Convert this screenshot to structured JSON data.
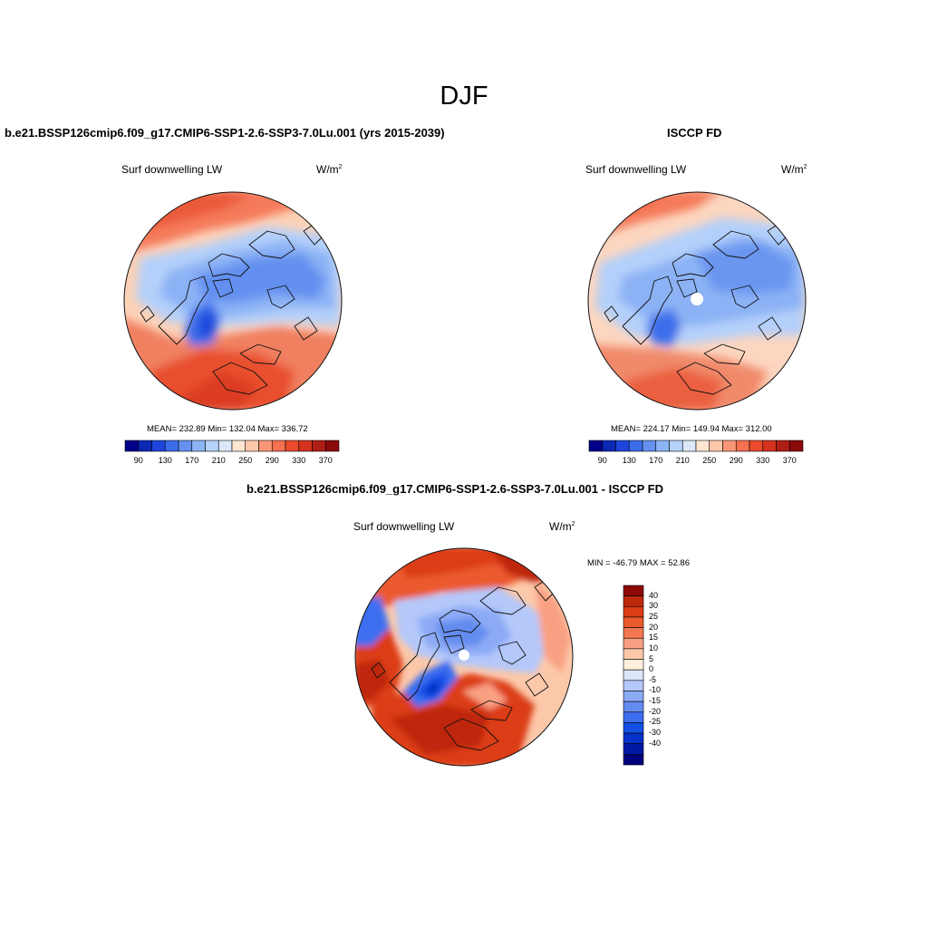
{
  "page": {
    "title": "DJF"
  },
  "palette_abs": [
    "#00008b",
    "#0a28b4",
    "#1e46dc",
    "#3c6eeb",
    "#6490f0",
    "#8cb4f5",
    "#b4d2fa",
    "#dce8fa",
    "#ffe6d2",
    "#fcc8aa",
    "#fa9678",
    "#f57050",
    "#eb4b2d",
    "#d2321e",
    "#af1e14",
    "#8b0a0a"
  ],
  "palette_diff": [
    "#00007d",
    "#0019a5",
    "#0532c8",
    "#1450e6",
    "#3c6ef0",
    "#648cf0",
    "#8caaf5",
    "#b4c8fa",
    "#dce6fa",
    "#fff0dc",
    "#fcc8aa",
    "#faa082",
    "#f57850",
    "#eb5a2d",
    "#dc3c14",
    "#be280a",
    "#8c0a05"
  ],
  "panels": {
    "model": {
      "title": "b.e21.BSSP126cmip6.f09_g17.CMIP6-SSP1-2.6-SSP3-7.0Lu.001 (yrs 2015-2039)",
      "variable": "Surf downwelling LW",
      "units": "W/m",
      "units_exp": "2",
      "stats": "MEAN= 232.89  Min= 132.04  Max= 336.72",
      "colorbar_labels": [
        "90",
        "130",
        "170",
        "210",
        "250",
        "290",
        "330",
        "370"
      ]
    },
    "obs": {
      "title": "ISCCP FD",
      "variable": "Surf downwelling LW",
      "units": "W/m",
      "units_exp": "2",
      "stats": "MEAN= 224.17  Min= 149.94  Max= 312.00",
      "colorbar_labels": [
        "90",
        "130",
        "170",
        "210",
        "250",
        "290",
        "330",
        "370"
      ]
    },
    "diff": {
      "title": "b.e21.BSSP126cmip6.f09_g17.CMIP6-SSP1-2.6-SSP3-7.0Lu.001 - ISCCP FD",
      "variable": "Surf downwelling LW",
      "units": "W/m",
      "units_exp": "2",
      "minmax": "MIN = -46.79 MAX =  52.86",
      "colorbar_labels": [
        "40",
        "30",
        "25",
        "20",
        "15",
        "10",
        "5",
        "0",
        "-5",
        "-10",
        "-15",
        "-20",
        "-25",
        "-30",
        "-40"
      ]
    }
  }
}
